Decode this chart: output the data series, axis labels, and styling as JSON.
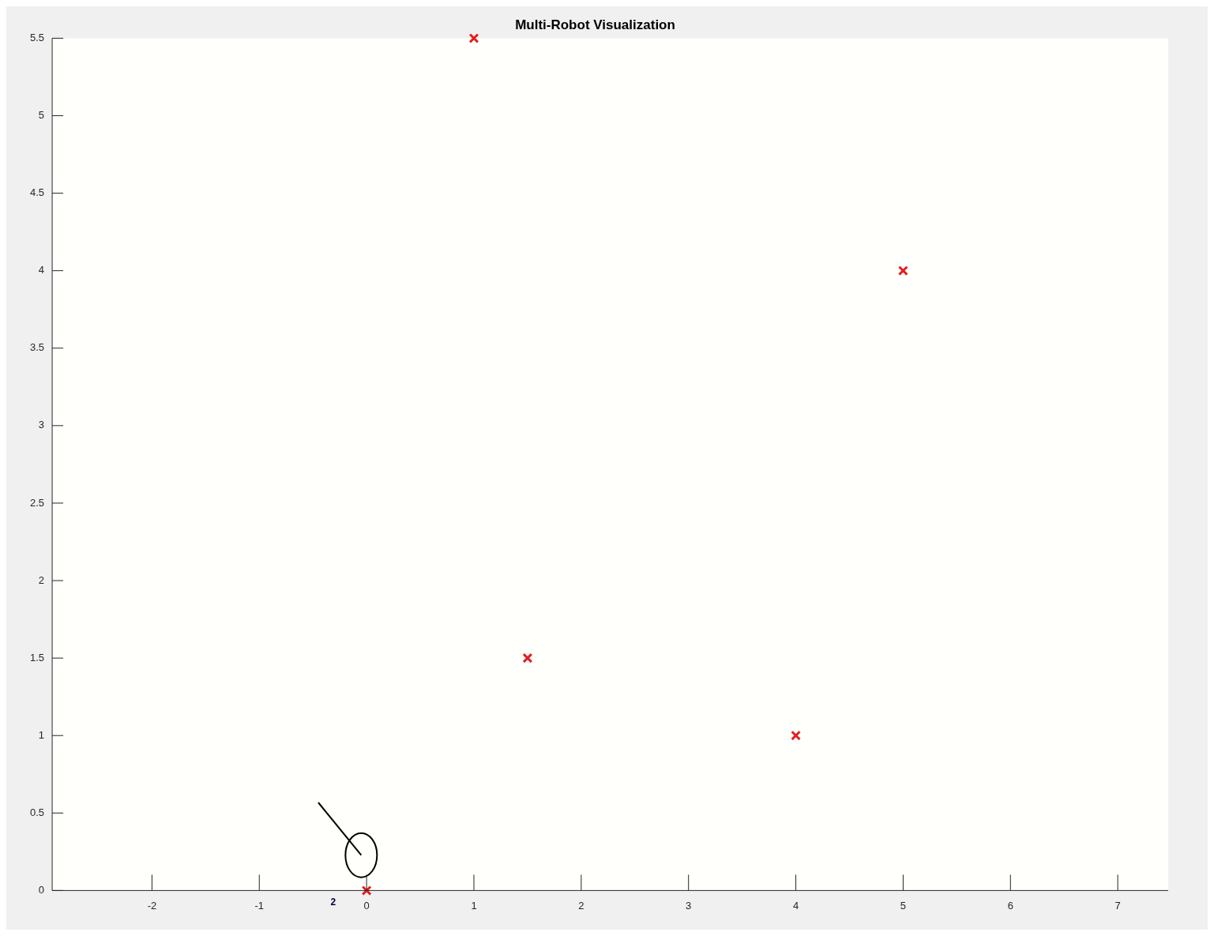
{
  "chart_data": {
    "type": "scatter",
    "title": "Multi-Robot Visualization",
    "x": [
      1,
      5,
      1.5,
      4,
      0
    ],
    "values": [
      5.5,
      4,
      1.5,
      1,
      0
    ],
    "color": "#e02020",
    "marker": "cross",
    "xlim": [
      -2.93,
      7.47
    ],
    "xticks": [
      -2,
      -1,
      0,
      1,
      2,
      3,
      4,
      5,
      6,
      7
    ],
    "ylim": [
      0,
      5.5
    ],
    "yticks": [
      0,
      0.5,
      1,
      1.5,
      2,
      2.5,
      3,
      3.5,
      4,
      4.5,
      5,
      5.5
    ],
    "legend": false,
    "annotations": [
      "2"
    ]
  }
}
